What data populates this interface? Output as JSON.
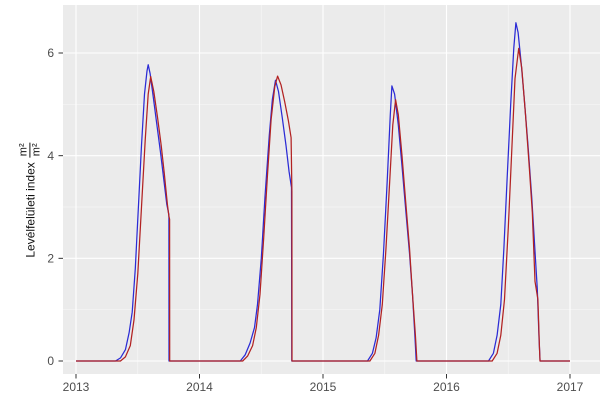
{
  "chart_data": {
    "type": "line",
    "title": "",
    "xlabel": "",
    "ylabel": "Levélfelületi index m²/m²",
    "ylabel_text": "Levélfelületi index",
    "ylabel_unit_numerator": "m²",
    "ylabel_unit_denominator": "m²",
    "legend": "none",
    "grid": "major-and-minor",
    "x_axis": {
      "ticks": [
        2013,
        2014,
        2015,
        2016,
        2017
      ],
      "tick_labels": [
        "2013",
        "2014",
        "2015",
        "2016",
        "2017"
      ],
      "minor_ticks": [
        2013.5,
        2014.5,
        2015.5,
        2016.5
      ],
      "range": [
        2012.9,
        2017.25
      ]
    },
    "y_axis": {
      "ticks": [
        0,
        2,
        4,
        6
      ],
      "tick_labels": [
        "0",
        "2",
        "4",
        "6"
      ],
      "minor_ticks": [
        1,
        3,
        5
      ],
      "range": [
        -0.25,
        6.95
      ]
    },
    "colors": {
      "panel_bg": "#EBEBEB",
      "grid_major": "#FFFFFF",
      "grid_minor": "#F6F6F6",
      "tick_mark": "#333333",
      "tick_label": "#4D4D4D",
      "blue_series": "#2B2BD5",
      "red_series": "#B22222"
    },
    "series": [
      {
        "name": "blue-series",
        "color": "#2B2BD5",
        "points": [
          [
            2013.0,
            0
          ],
          [
            2013.32,
            0
          ],
          [
            2013.36,
            0.06
          ],
          [
            2013.4,
            0.22
          ],
          [
            2013.43,
            0.55
          ],
          [
            2013.455,
            0.95
          ],
          [
            2013.48,
            1.8
          ],
          [
            2013.505,
            3.0
          ],
          [
            2013.53,
            4.2
          ],
          [
            2013.555,
            5.2
          ],
          [
            2013.575,
            5.65
          ],
          [
            2013.585,
            5.77
          ],
          [
            2013.6,
            5.6
          ],
          [
            2013.625,
            5.15
          ],
          [
            2013.655,
            4.6
          ],
          [
            2013.685,
            4.05
          ],
          [
            2013.71,
            3.55
          ],
          [
            2013.735,
            3.05
          ],
          [
            2013.752,
            2.85
          ],
          [
            2013.753,
            0
          ],
          [
            2014.33,
            0
          ],
          [
            2014.37,
            0.12
          ],
          [
            2014.41,
            0.35
          ],
          [
            2014.445,
            0.65
          ],
          [
            2014.47,
            1.1
          ],
          [
            2014.5,
            2.0
          ],
          [
            2014.53,
            3.2
          ],
          [
            2014.565,
            4.4
          ],
          [
            2014.59,
            5.1
          ],
          [
            2014.615,
            5.47
          ],
          [
            2014.64,
            5.25
          ],
          [
            2014.67,
            4.75
          ],
          [
            2014.7,
            4.2
          ],
          [
            2014.725,
            3.7
          ],
          [
            2014.745,
            3.38
          ],
          [
            2014.747,
            0
          ],
          [
            2015.36,
            0
          ],
          [
            2015.4,
            0.15
          ],
          [
            2015.43,
            0.45
          ],
          [
            2015.46,
            1.0
          ],
          [
            2015.49,
            2.1
          ],
          [
            2015.52,
            3.5
          ],
          [
            2015.545,
            4.8
          ],
          [
            2015.558,
            5.36
          ],
          [
            2015.58,
            5.2
          ],
          [
            2015.61,
            4.6
          ],
          [
            2015.64,
            3.8
          ],
          [
            2015.67,
            2.95
          ],
          [
            2015.7,
            2.1
          ],
          [
            2015.725,
            1.3
          ],
          [
            2015.745,
            0.45
          ],
          [
            2015.755,
            0
          ],
          [
            2016.34,
            0
          ],
          [
            2016.38,
            0.15
          ],
          [
            2016.41,
            0.5
          ],
          [
            2016.44,
            1.1
          ],
          [
            2016.465,
            2.2
          ],
          [
            2016.49,
            3.5
          ],
          [
            2016.52,
            5.0
          ],
          [
            2016.545,
            6.1
          ],
          [
            2016.562,
            6.59
          ],
          [
            2016.58,
            6.4
          ],
          [
            2016.605,
            5.8
          ],
          [
            2016.63,
            5.1
          ],
          [
            2016.66,
            4.2
          ],
          [
            2016.69,
            3.2
          ],
          [
            2016.715,
            2.2
          ],
          [
            2016.735,
            1.4
          ],
          [
            2016.75,
            0.4
          ],
          [
            2016.758,
            0
          ],
          [
            2017.0,
            0
          ]
        ]
      },
      {
        "name": "red-series",
        "color": "#B22222",
        "points": [
          [
            2013.0,
            0
          ],
          [
            2013.36,
            0
          ],
          [
            2013.4,
            0.08
          ],
          [
            2013.44,
            0.3
          ],
          [
            2013.47,
            0.8
          ],
          [
            2013.5,
            1.7
          ],
          [
            2013.53,
            3.0
          ],
          [
            2013.56,
            4.3
          ],
          [
            2013.585,
            5.2
          ],
          [
            2013.605,
            5.54
          ],
          [
            2013.63,
            5.25
          ],
          [
            2013.66,
            4.75
          ],
          [
            2013.69,
            4.2
          ],
          [
            2013.715,
            3.65
          ],
          [
            2013.74,
            3.05
          ],
          [
            2013.752,
            2.82
          ],
          [
            2013.758,
            2.76
          ],
          [
            2013.759,
            0
          ],
          [
            2014.35,
            0
          ],
          [
            2014.39,
            0.1
          ],
          [
            2014.43,
            0.3
          ],
          [
            2014.46,
            0.65
          ],
          [
            2014.49,
            1.3
          ],
          [
            2014.52,
            2.4
          ],
          [
            2014.55,
            3.6
          ],
          [
            2014.58,
            4.7
          ],
          [
            2014.61,
            5.35
          ],
          [
            2014.632,
            5.55
          ],
          [
            2014.66,
            5.38
          ],
          [
            2014.69,
            5.05
          ],
          [
            2014.72,
            4.68
          ],
          [
            2014.742,
            4.35
          ],
          [
            2014.748,
            3.3
          ],
          [
            2014.749,
            0
          ],
          [
            2015.38,
            0
          ],
          [
            2015.42,
            0.15
          ],
          [
            2015.45,
            0.5
          ],
          [
            2015.48,
            1.1
          ],
          [
            2015.51,
            2.2
          ],
          [
            2015.54,
            3.5
          ],
          [
            2015.565,
            4.6
          ],
          [
            2015.588,
            5.09
          ],
          [
            2015.61,
            4.8
          ],
          [
            2015.64,
            4.0
          ],
          [
            2015.67,
            3.1
          ],
          [
            2015.7,
            2.2
          ],
          [
            2015.725,
            1.3
          ],
          [
            2015.748,
            0.5
          ],
          [
            2015.76,
            0
          ],
          [
            2016.37,
            0
          ],
          [
            2016.41,
            0.15
          ],
          [
            2016.44,
            0.5
          ],
          [
            2016.47,
            1.2
          ],
          [
            2016.5,
            2.6
          ],
          [
            2016.53,
            4.2
          ],
          [
            2016.555,
            5.5
          ],
          [
            2016.585,
            6.09
          ],
          [
            2016.61,
            5.7
          ],
          [
            2016.64,
            4.8
          ],
          [
            2016.67,
            3.8
          ],
          [
            2016.695,
            2.9
          ],
          [
            2016.717,
            1.55
          ],
          [
            2016.74,
            1.2
          ],
          [
            2016.752,
            0.3
          ],
          [
            2016.757,
            0
          ],
          [
            2017.0,
            0
          ]
        ]
      }
    ]
  }
}
